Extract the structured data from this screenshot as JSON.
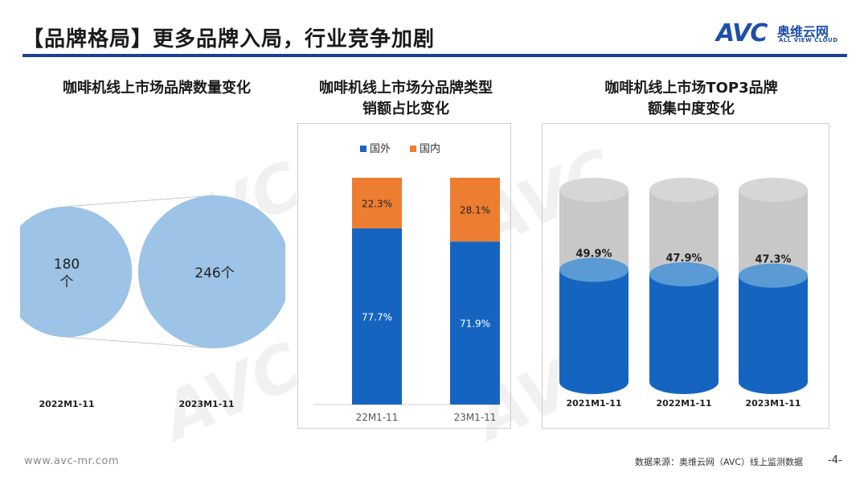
{
  "header": {
    "title": "【品牌格局】更多品牌入局，行业竞争加剧"
  },
  "logo": {
    "mark": "AVC",
    "cn": "奥维云网",
    "en": "ALL VIEW CLOUD"
  },
  "watermark": "AVC",
  "footer": {
    "website": "www.avc-mr.com",
    "source": "数据来源：奥维云网（AVC）线上监测数据",
    "page": "-4-"
  },
  "colors": {
    "accent_blue": "#1f3f94",
    "bubble": "#9dc3e6",
    "domestic_foreign": "#1565c0",
    "domestic": "#ed7d31",
    "cylinder_fill": "#1565c0",
    "cylinder_top": "#5b9bd5",
    "cylinder_bg": "#c8c8c8"
  },
  "chart_data": [
    {
      "type": "bubble",
      "title": "咖啡机线上市场品牌数量变化",
      "categories": [
        "2022M1-11",
        "2023M1-11"
      ],
      "values": [
        180,
        246
      ],
      "value_labels": [
        "180\n个",
        "246个"
      ]
    },
    {
      "type": "bar",
      "stacked": true,
      "percent": true,
      "title": "咖啡机线上市场分品牌类型\n销额占比变化",
      "categories": [
        "22M1-11",
        "23M1-11"
      ],
      "series": [
        {
          "name": "国外",
          "values": [
            77.7,
            71.9
          ],
          "labels": [
            "77.7%",
            "71.9%"
          ],
          "color": "#1565c0"
        },
        {
          "name": "国内",
          "values": [
            22.3,
            28.1
          ],
          "labels": [
            "22.3%",
            "28.1%"
          ],
          "color": "#ed7d31"
        }
      ],
      "ylim": [
        0,
        100
      ],
      "legend": "top"
    },
    {
      "type": "bar",
      "shape": "cylinder",
      "title": "咖啡机线上市场TOP3品牌\n额集中度变化",
      "categories": [
        "2021M1-11",
        "2022M1-11",
        "2023M1-11"
      ],
      "values": [
        49.9,
        47.9,
        47.3
      ],
      "labels": [
        "49.9%",
        "47.9%",
        "47.3%"
      ],
      "ylim": [
        0,
        100
      ]
    }
  ]
}
